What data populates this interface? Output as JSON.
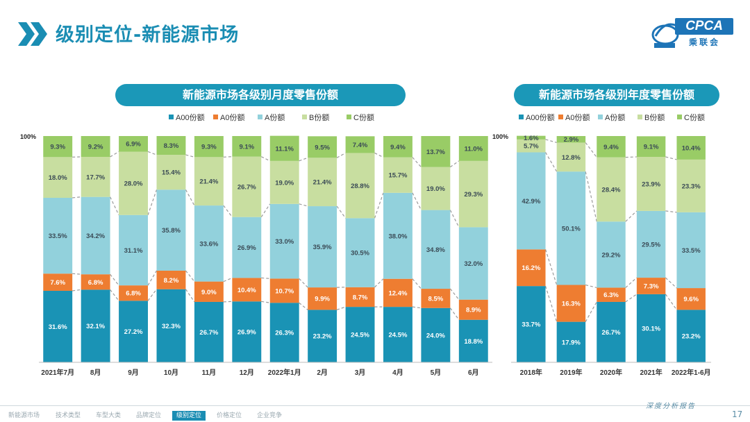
{
  "header": {
    "title": "级别定位-新能源市场"
  },
  "logo": {
    "text": "CPCA",
    "cn": "乘联会"
  },
  "colors": {
    "A00": "#1a93b5",
    "A0": "#ee7d31",
    "A": "#92d1dc",
    "B": "#c8dea0",
    "C": "#99cc66",
    "brand": "#1a8db3"
  },
  "chart_data": [
    {
      "type": "bar",
      "stacked": true,
      "title": "新能源市场各级别月度零售份额",
      "y_top_label": "100%",
      "legend": [
        "A00份额",
        "A0份额",
        "A份额",
        "B份额",
        "C份额"
      ],
      "categories": [
        "2021年7月",
        "8月",
        "9月",
        "10月",
        "11月",
        "12月",
        "2022年1月",
        "2月",
        "3月",
        "4月",
        "5月",
        "6月"
      ],
      "series": [
        {
          "name": "A00份额",
          "values": [
            31.6,
            32.1,
            27.2,
            32.3,
            26.7,
            26.9,
            26.3,
            23.2,
            24.5,
            24.5,
            24.0,
            18.8
          ]
        },
        {
          "name": "A0份额",
          "values": [
            7.6,
            6.8,
            6.8,
            8.2,
            9.0,
            10.4,
            10.7,
            9.9,
            8.7,
            12.4,
            8.5,
            8.9
          ]
        },
        {
          "name": "A份额",
          "values": [
            33.5,
            34.2,
            31.1,
            35.8,
            33.6,
            26.9,
            33.0,
            35.9,
            30.5,
            38.0,
            34.8,
            32.0
          ]
        },
        {
          "name": "B份额",
          "values": [
            18.0,
            17.7,
            28.0,
            15.4,
            21.4,
            26.7,
            19.0,
            21.4,
            28.8,
            15.7,
            19.0,
            29.3
          ]
        },
        {
          "name": "C份额",
          "values": [
            9.3,
            9.2,
            6.9,
            8.3,
            9.3,
            9.1,
            11.1,
            9.5,
            7.4,
            9.4,
            13.7,
            11.0
          ]
        }
      ],
      "labels": [
        [
          "31.6%",
          "32.1%",
          "27.2%",
          "32.3%",
          "26.7%",
          "26.9%",
          "26.3%",
          "23.2%",
          "24.5%",
          "24.5%",
          "24.0%",
          "18.8%"
        ],
        [
          "7.6%",
          "6.8%",
          "6.8%",
          "8.2%",
          "9.0%",
          "10.4%",
          "10.7%",
          "9.9%",
          "8.7%",
          "12.4%",
          "8.5%",
          "8.9%"
        ],
        [
          "33.5%",
          "34.2%",
          "31.1%",
          "35.8%",
          "33.6%",
          "26.9%",
          "33.0%",
          "35.9%",
          "30.5%",
          "38.0%",
          "34.8%",
          "32.0%"
        ],
        [
          "18.0%",
          "17.7%",
          "28.0%",
          "15.4%",
          "21.4%",
          "26.7%",
          "19.0%",
          "21.4%",
          "28.8%",
          "15.7%",
          "19.0%",
          "29.3%"
        ],
        [
          "9.3%",
          "9.2%",
          "6.9%",
          "8.3%",
          "9.3%",
          "9.1%",
          "11.1%",
          "9.5%",
          "7.4%",
          "9.4%",
          "13.7%",
          "11.0%"
        ]
      ],
      "ylim": [
        0,
        100
      ]
    },
    {
      "type": "bar",
      "stacked": true,
      "title": "新能源市场各级别年度零售份额",
      "y_top_label": "100%",
      "legend": [
        "A00份额",
        "A0份额",
        "A份额",
        "B份额",
        "C份额"
      ],
      "categories": [
        "2018年",
        "2019年",
        "2020年",
        "2021年",
        "2022年1-6月"
      ],
      "series": [
        {
          "name": "A00份额",
          "values": [
            33.7,
            17.9,
            26.7,
            30.1,
            23.2
          ]
        },
        {
          "name": "A0份额",
          "values": [
            16.2,
            16.3,
            6.3,
            7.3,
            9.6
          ]
        },
        {
          "name": "A份额",
          "values": [
            42.9,
            50.1,
            29.2,
            29.5,
            33.5
          ]
        },
        {
          "name": "B份额",
          "values": [
            5.7,
            12.8,
            28.4,
            23.9,
            23.3
          ]
        },
        {
          "name": "C份额",
          "values": [
            1.6,
            2.9,
            9.4,
            9.1,
            10.4
          ]
        }
      ],
      "labels": [
        [
          "33.7%",
          "17.9%",
          "26.7%",
          "30.1%",
          "23.2%"
        ],
        [
          "16.2%",
          "16.3%",
          "6.3%",
          "7.3%",
          "9.6%"
        ],
        [
          "42.9%",
          "50.1%",
          "29.2%",
          "29.5%",
          "33.5%"
        ],
        [
          "5.7%",
          "12.8%",
          "28.4%",
          "23.9%",
          "23.3%"
        ],
        [
          "1.6%",
          "2.9%",
          "9.4%",
          "9.1%",
          "10.4%"
        ]
      ],
      "ylim": [
        0,
        100
      ]
    }
  ],
  "footer": {
    "nav": [
      "新能源市场",
      "技术类型",
      "车型大类",
      "品牌定位",
      "级别定位",
      "价格定位",
      "企业竞争"
    ],
    "active_index": 4,
    "report": "深度分析报告",
    "page": "17"
  }
}
